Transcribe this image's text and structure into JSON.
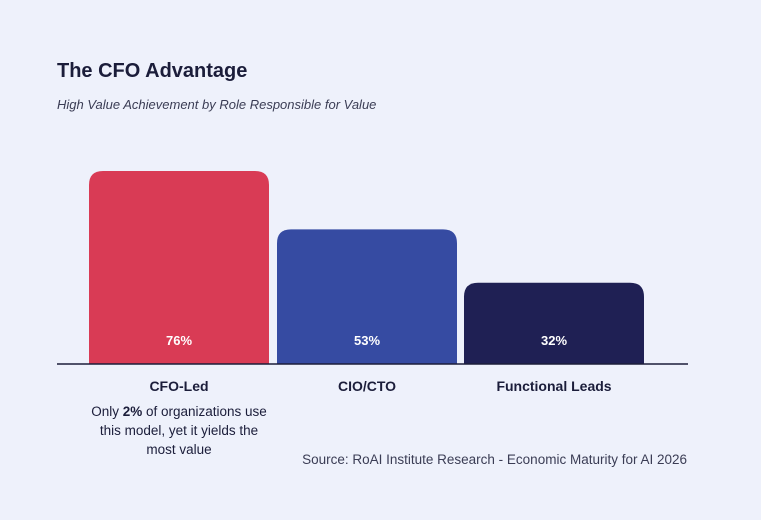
{
  "chart_data": {
    "type": "bar",
    "title": "The CFO Advantage",
    "subtitle": "High Value Achievement by Role Responsible for Value",
    "categories": [
      "CFO-Led",
      "CIO/CTO",
      "Functional Leads"
    ],
    "values": [
      76,
      53,
      32
    ],
    "value_labels": [
      "76%",
      "53%",
      "32%"
    ],
    "bar_colors": [
      "#d93b55",
      "#364ba2",
      "#1f2054"
    ],
    "ylim": [
      0,
      76
    ],
    "grid": false,
    "xlabel": "",
    "ylabel": ""
  },
  "note": {
    "prefix": "Only ",
    "highlight": "2%",
    "suffix": " of organizations use this model,  yet it yields the most value"
  },
  "source": "Source: RoAI Institute Research - Economic Maturity for AI 2026",
  "colors": {
    "background": "#eef1fb",
    "text": "#1b1d3a",
    "axis": "#1b1d3a"
  }
}
